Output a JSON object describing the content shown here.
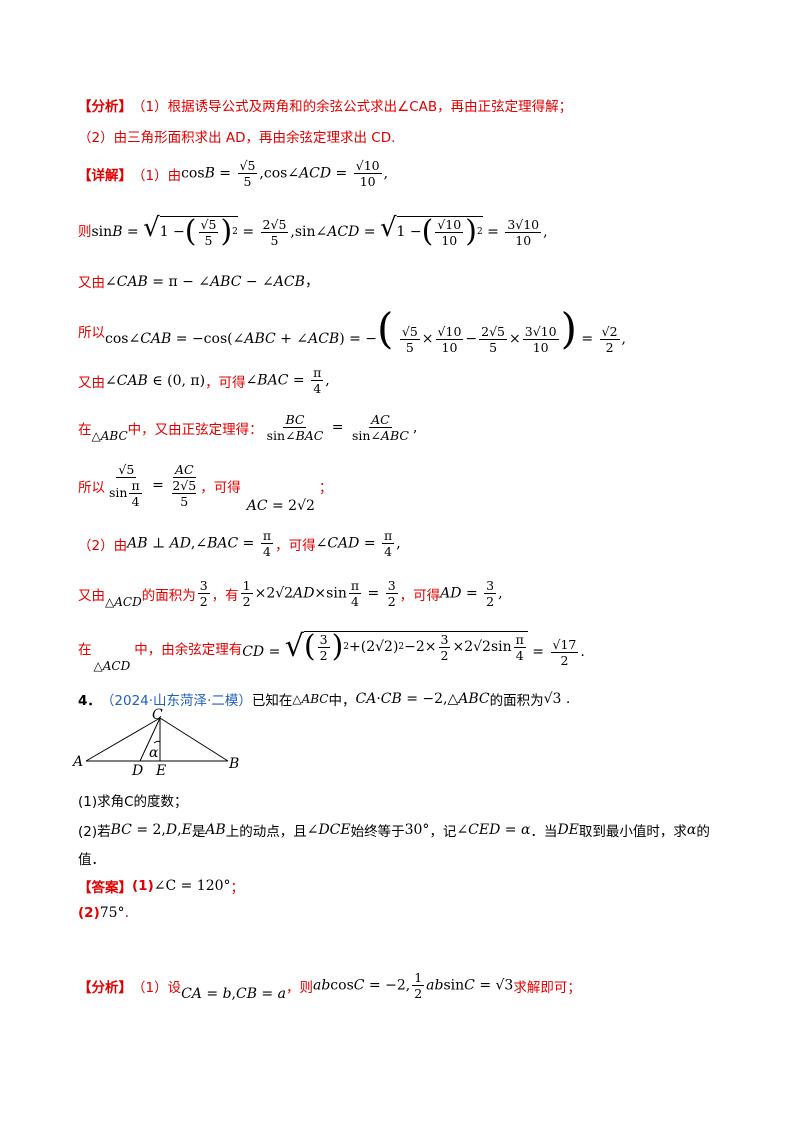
{
  "tags": {
    "analysis": "【分析】",
    "detail": "【详解】",
    "answer": "【答案】"
  },
  "analysis_lines": [
    "（1）根据诱导公式及两角和的余弦公式求出∠CAB，再由正弦定理得解；",
    "（2）由三角形面积求出 AD，再由余弦定理求出 CD."
  ],
  "detail": {
    "l1_prefix": "（1）由",
    "l1_expr": "cosB = √5/5, cos∠ACD = √10/10",
    "l2_prefix": "则",
    "l3_prefix": "又由",
    "l3_expr": "∠CAB = π − ∠ABC − ∠ACB",
    "l4_prefix": "所以",
    "l5_prefix": "又由",
    "l5_mid": "，可得",
    "l6_prefix": "在",
    "l6_mid": "中，又由正弦定理得：",
    "l7_prefix": "所以",
    "l7_mid": "，可得",
    "l8_prefix": "（2）由",
    "l8_mid": "，可得",
    "l9_prefix": "又由",
    "l9_mid1": "的面积为",
    "l9_mid2": "，有",
    "l9_mid3": "，可得",
    "l10_prefix": "在",
    "l10_mid": "中，由余弦定理有"
  },
  "problem": {
    "number": "4．",
    "source": "（2024·山东菏泽·二模）",
    "stem_prefix": "已知在",
    "stem_mid": "中，",
    "stem_suffix": "的面积为",
    "q1": "(1)求角C的度数；",
    "q2_prefix": "(2)若",
    "q2_mid1": "是",
    "q2_mid2": "上的动点，且",
    "q2_mid3": "始终等于",
    "q2_mid4": "，记",
    "q2_mid5": "．当",
    "q2_mid6": "取到最小值时，求",
    "q2_mid7": "的",
    "q2_line2": "值．",
    "ans1": "(1)",
    "ans1_expr": "∠C = 120°",
    "ans2": "(2)",
    "ans2_expr": "75°",
    "final_prefix": "（1）设",
    "final_mid": "，则",
    "final_suffix": "求解即可；"
  },
  "figure_labels": {
    "A": "A",
    "B": "B",
    "C": "C",
    "D": "D",
    "E": "E",
    "alpha": "α"
  }
}
